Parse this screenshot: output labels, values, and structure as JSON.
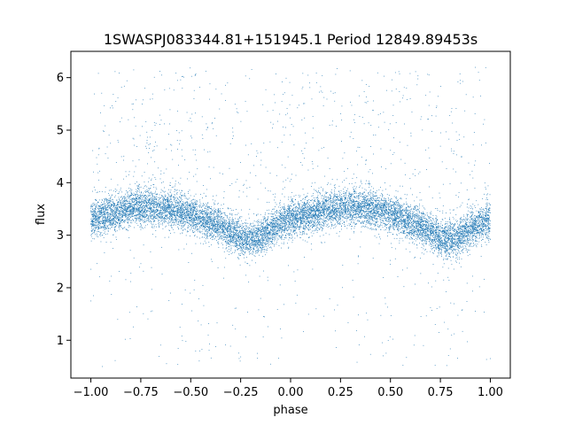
{
  "chart_data": {
    "type": "scatter",
    "title": "1SWASPJ083344.81+151945.1 Period 12849.89453s",
    "xlabel": "phase",
    "ylabel": "flux",
    "xlim": [
      -1.1,
      1.1
    ],
    "ylim": [
      0.28,
      6.5
    ],
    "x_ticks": [
      -1.0,
      -0.75,
      -0.5,
      -0.25,
      0.0,
      0.25,
      0.5,
      0.75,
      1.0
    ],
    "x_tick_labels": [
      "−1.00",
      "−0.75",
      "−0.50",
      "−0.25",
      "0.00",
      "0.25",
      "0.50",
      "0.75",
      "1.00"
    ],
    "y_ticks": [
      1,
      2,
      3,
      4,
      5,
      6
    ],
    "y_tick_labels": [
      "1",
      "2",
      "3",
      "4",
      "5",
      "6"
    ],
    "grid": false,
    "point_color": "#1f77b4",
    "phase_range": [
      -1.0,
      1.0
    ],
    "trend": {
      "phase": [
        -1.0,
        -0.9,
        -0.8,
        -0.7,
        -0.6,
        -0.5,
        -0.4,
        -0.3,
        -0.25,
        -0.2,
        -0.15,
        -0.1,
        -0.05,
        0.0,
        0.1,
        0.2,
        0.3,
        0.4,
        0.5,
        0.6,
        0.7,
        0.75,
        0.8,
        0.85,
        0.9,
        0.95,
        1.0
      ],
      "flux": [
        3.3,
        3.4,
        3.5,
        3.55,
        3.5,
        3.4,
        3.25,
        3.05,
        2.95,
        2.92,
        2.98,
        3.1,
        3.22,
        3.3,
        3.4,
        3.5,
        3.55,
        3.5,
        3.4,
        3.25,
        3.05,
        2.95,
        2.92,
        2.98,
        3.1,
        3.22,
        3.3
      ]
    },
    "core_scatter": 0.17,
    "n_points_core": 12000,
    "n_points_outliers": 900,
    "outlier_flux_range": [
      0.5,
      6.2
    ]
  }
}
